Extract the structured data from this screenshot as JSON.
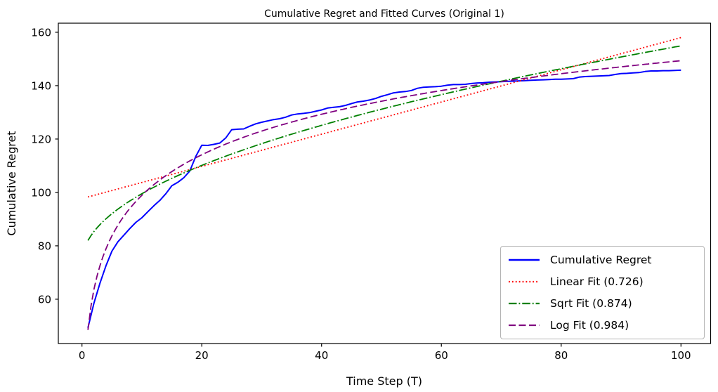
{
  "chart_data": {
    "type": "line",
    "title": "Cumulative Regret and Fitted Curves (Original 1)",
    "xlabel": "Time Step (T)",
    "ylabel": "Cumulative Regret",
    "xlim": [
      -3.95,
      104.95
    ],
    "ylim": [
      43.4,
      163.4
    ],
    "x_ticks": [
      0,
      20,
      40,
      60,
      80,
      100
    ],
    "y_ticks": [
      60,
      80,
      100,
      120,
      140,
      160
    ],
    "grid": false,
    "legend_position": "lower right",
    "frame_color": "#000000",
    "series": [
      {
        "name": "Cumulative Regret",
        "color": "#0000ff",
        "style": "solid",
        "width": 2,
        "t_start": 1,
        "values": [
          49.3,
          58.5,
          66.0,
          72.5,
          78.0,
          81.5,
          84.0,
          86.5,
          88.8,
          90.5,
          92.8,
          95.0,
          97.0,
          99.5,
          102.5,
          103.8,
          105.5,
          108.0,
          113.5,
          117.7,
          117.6,
          118.0,
          118.5,
          120.4,
          123.5,
          123.7,
          123.8,
          124.8,
          125.7,
          126.3,
          126.8,
          127.3,
          127.6,
          128.2,
          129.0,
          129.4,
          129.6,
          129.9,
          130.4,
          130.9,
          131.6,
          131.9,
          132.1,
          132.6,
          133.3,
          133.9,
          134.2,
          134.6,
          135.2,
          136.0,
          136.6,
          137.3,
          137.6,
          137.8,
          138.2,
          139.0,
          139.4,
          139.5,
          139.6,
          139.8,
          140.2,
          140.4,
          140.4,
          140.5,
          140.8,
          141.0,
          141.1,
          141.3,
          141.4,
          141.5,
          141.6,
          141.7,
          141.8,
          141.9,
          142.0,
          142.1,
          142.2,
          142.3,
          142.4,
          142.4,
          142.5,
          142.6,
          143.2,
          143.4,
          143.5,
          143.6,
          143.7,
          143.8,
          144.2,
          144.5,
          144.6,
          144.8,
          144.9,
          145.3,
          145.5,
          145.5,
          145.6,
          145.6,
          145.7,
          145.8
        ]
      },
      {
        "name": "Linear Fit (0.726)",
        "color": "#ff0000",
        "style": "dotted",
        "width": 1.8,
        "r_squared": 0.726,
        "fit": {
          "fn": "linear",
          "a": 0.603,
          "b": 97.7,
          "t_min": 1,
          "t_max": 100
        }
      },
      {
        "name": "Sqrt Fit (0.874)",
        "color": "#008000",
        "style": "dashdot",
        "width": 1.8,
        "r_squared": 0.874,
        "fit": {
          "fn": "sqrt",
          "a": 8.1,
          "b": 73.9,
          "t_min": 1,
          "t_max": 100
        }
      },
      {
        "name": "Log Fit (0.984)",
        "color": "#800080",
        "style": "dashed",
        "width": 1.8,
        "r_squared": 0.984,
        "fit": {
          "fn": "log",
          "a": 21.9,
          "b": 48.5,
          "t_min": 1,
          "t_max": 100
        }
      }
    ],
    "legend_entries": [
      {
        "label": "Cumulative Regret"
      },
      {
        "label": "Linear Fit (0.726)"
      },
      {
        "label": "Sqrt Fit (0.874)"
      },
      {
        "label": "Log Fit (0.984)"
      }
    ]
  }
}
